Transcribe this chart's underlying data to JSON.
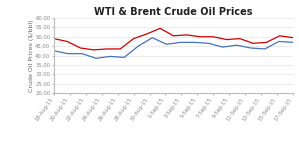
{
  "title": "WTI & Brent Crude Oil Prices",
  "ylabel": "Crude Oil Prices ($/bbl)",
  "ylim": [
    20.0,
    60.0
  ],
  "yticks": [
    20.0,
    25.0,
    30.0,
    35.0,
    40.0,
    45.0,
    50.0,
    55.0,
    60.0
  ],
  "x_labels": [
    "18-Aug-15",
    "20-Aug-15",
    "22-Aug-15",
    "24-Aug-15",
    "26-Aug-15",
    "28-Aug-15",
    "30-Aug-15",
    "1-Sep-15",
    "3-Sep-15",
    "5-Sep-15",
    "7-Sep-15",
    "9-Sep-15",
    "11-Sep-15",
    "13-Sep-15",
    "15-Sep-15",
    "17-Sep-15"
  ],
  "wti": [
    42.5,
    41.0,
    41.0,
    38.5,
    39.5,
    39.0,
    45.0,
    49.5,
    46.0,
    47.0,
    47.0,
    46.5,
    44.5,
    45.5,
    44.0,
    43.5,
    47.5,
    47.0
  ],
  "brent": [
    49.0,
    47.5,
    44.0,
    43.0,
    43.5,
    43.5,
    49.0,
    51.5,
    54.5,
    50.5,
    51.0,
    50.0,
    50.0,
    48.5,
    49.0,
    46.5,
    47.0,
    50.5,
    49.5
  ],
  "wti_color": "#4472C4",
  "brent_color": "#CC0000",
  "background_color": "#FFFFFF",
  "title_fontsize": 7,
  "axis_fontsize": 4.5,
  "tick_fontsize": 3.8,
  "grid_color": "#DDDDDD",
  "line_width": 0.9
}
